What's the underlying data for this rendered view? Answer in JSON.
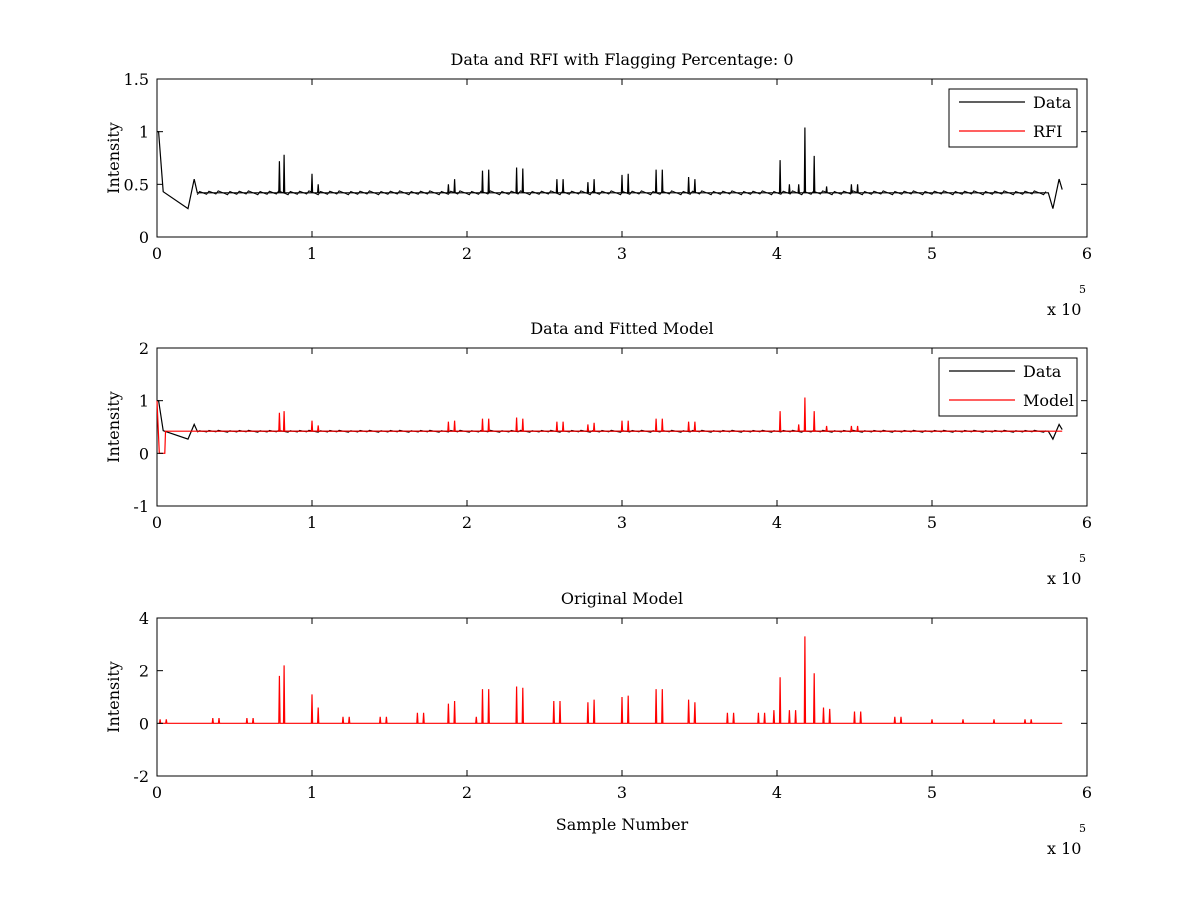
{
  "colors": {
    "data": "#000000",
    "rfi": "#ff0000",
    "axes": "#000000",
    "background": "#ffffff"
  },
  "chart_data": [
    {
      "type": "line",
      "title": "Data and RFI with Flagging Percentage: 0",
      "ylabel": "Intensity",
      "xlabel": "",
      "xlim": [
        0,
        600000
      ],
      "ylim": [
        0,
        1.5
      ],
      "xticks": [
        "0",
        "1",
        "2",
        "3",
        "4",
        "5",
        "6"
      ],
      "yticks": [
        "0",
        "0.5",
        "1",
        "1.5"
      ],
      "x_exponent_base": "x 10",
      "x_exponent": "5",
      "legend": {
        "position": "top-right",
        "entries": [
          "Data",
          "RFI"
        ]
      },
      "series": [
        {
          "name": "Data",
          "color": "#000000",
          "baseline": 0.42,
          "edges": [
            [
              0,
              1.0
            ],
            [
              1000,
              1.0
            ],
            [
              4000,
              0.43
            ],
            [
              20000,
              0.27
            ],
            [
              24000,
              0.55
            ],
            [
              26000,
              0.42
            ],
            [
              575000,
              0.42
            ],
            [
              578000,
              0.27
            ],
            [
              582000,
              0.55
            ],
            [
              584000,
              0.45
            ]
          ],
          "spikes": [
            [
              79000,
              0.72
            ],
            [
              82000,
              0.78
            ],
            [
              100000,
              0.6
            ],
            [
              104000,
              0.5
            ],
            [
              188000,
              0.5
            ],
            [
              192000,
              0.55
            ],
            [
              210000,
              0.63
            ],
            [
              214000,
              0.64
            ],
            [
              232000,
              0.66
            ],
            [
              236000,
              0.65
            ],
            [
              258000,
              0.55
            ],
            [
              262000,
              0.55
            ],
            [
              278000,
              0.52
            ],
            [
              282000,
              0.55
            ],
            [
              300000,
              0.59
            ],
            [
              304000,
              0.6
            ],
            [
              322000,
              0.64
            ],
            [
              326000,
              0.64
            ],
            [
              343000,
              0.57
            ],
            [
              347000,
              0.55
            ],
            [
              402000,
              0.73
            ],
            [
              408000,
              0.5
            ],
            [
              414000,
              0.5
            ],
            [
              418000,
              1.04
            ],
            [
              424000,
              0.77
            ],
            [
              432000,
              0.48
            ],
            [
              448000,
              0.5
            ],
            [
              452000,
              0.5
            ]
          ]
        },
        {
          "name": "RFI",
          "color": "#ff0000",
          "values": []
        }
      ]
    },
    {
      "type": "line",
      "title": "Data and Fitted Model",
      "ylabel": "Intensity",
      "xlabel": "",
      "xlim": [
        0,
        600000
      ],
      "ylim": [
        -1,
        2
      ],
      "xticks": [
        "0",
        "1",
        "2",
        "3",
        "4",
        "5",
        "6"
      ],
      "yticks": [
        "-1",
        "0",
        "1",
        "2"
      ],
      "x_exponent_base": "x 10",
      "x_exponent": "5",
      "legend": {
        "position": "top-right",
        "entries": [
          "Data",
          "Model"
        ]
      },
      "series": [
        {
          "name": "Data",
          "color": "#000000",
          "baseline": 0.42,
          "edges": [
            [
              0,
              1.0
            ],
            [
              1000,
              1.0
            ],
            [
              4000,
              0.43
            ],
            [
              20000,
              0.27
            ],
            [
              24000,
              0.55
            ],
            [
              26000,
              0.42
            ],
            [
              575000,
              0.42
            ],
            [
              578000,
              0.27
            ],
            [
              582000,
              0.55
            ],
            [
              584000,
              0.45
            ]
          ],
          "spikes": []
        },
        {
          "name": "Model",
          "color": "#ff0000",
          "baseline": 0.42,
          "edges": [
            [
              0,
              1.0
            ],
            [
              1500,
              0.0
            ],
            [
              5000,
              0.0
            ],
            [
              5500,
              0.42
            ]
          ],
          "spikes": [
            [
              79000,
              0.77
            ],
            [
              82000,
              0.8
            ],
            [
              100000,
              0.62
            ],
            [
              104000,
              0.53
            ],
            [
              188000,
              0.6
            ],
            [
              192000,
              0.62
            ],
            [
              210000,
              0.66
            ],
            [
              214000,
              0.66
            ],
            [
              232000,
              0.68
            ],
            [
              236000,
              0.66
            ],
            [
              258000,
              0.6
            ],
            [
              262000,
              0.6
            ],
            [
              278000,
              0.55
            ],
            [
              282000,
              0.58
            ],
            [
              300000,
              0.62
            ],
            [
              304000,
              0.62
            ],
            [
              322000,
              0.66
            ],
            [
              326000,
              0.66
            ],
            [
              343000,
              0.6
            ],
            [
              347000,
              0.6
            ],
            [
              402000,
              0.8
            ],
            [
              414000,
              0.55
            ],
            [
              418000,
              1.06
            ],
            [
              424000,
              0.8
            ],
            [
              432000,
              0.52
            ],
            [
              448000,
              0.52
            ],
            [
              452000,
              0.52
            ]
          ]
        }
      ]
    },
    {
      "type": "line",
      "title": "Original Model",
      "ylabel": "Intensity",
      "xlabel": "Sample Number",
      "xlim": [
        0,
        600000
      ],
      "ylim": [
        -2,
        4
      ],
      "xticks": [
        "0",
        "1",
        "2",
        "3",
        "4",
        "5",
        "6"
      ],
      "yticks": [
        "-2",
        "0",
        "2",
        "4"
      ],
      "x_exponent_base": "x 10",
      "x_exponent": "5",
      "series": [
        {
          "name": "Model",
          "color": "#ff0000",
          "baseline": 0.0,
          "edges": [],
          "spikes": [
            [
              2000,
              0.15
            ],
            [
              6000,
              0.15
            ],
            [
              36000,
              0.2
            ],
            [
              40000,
              0.2
            ],
            [
              58000,
              0.2
            ],
            [
              62000,
              0.2
            ],
            [
              79000,
              1.8
            ],
            [
              82000,
              2.2
            ],
            [
              100000,
              1.1
            ],
            [
              104000,
              0.6
            ],
            [
              120000,
              0.25
            ],
            [
              124000,
              0.25
            ],
            [
              144000,
              0.25
            ],
            [
              148000,
              0.25
            ],
            [
              168000,
              0.4
            ],
            [
              172000,
              0.4
            ],
            [
              188000,
              0.75
            ],
            [
              192000,
              0.85
            ],
            [
              206000,
              0.25
            ],
            [
              210000,
              1.3
            ],
            [
              214000,
              1.3
            ],
            [
              232000,
              1.4
            ],
            [
              236000,
              1.35
            ],
            [
              256000,
              0.85
            ],
            [
              260000,
              0.85
            ],
            [
              278000,
              0.8
            ],
            [
              282000,
              0.9
            ],
            [
              300000,
              1.0
            ],
            [
              304000,
              1.05
            ],
            [
              322000,
              1.3
            ],
            [
              326000,
              1.3
            ],
            [
              343000,
              0.9
            ],
            [
              347000,
              0.8
            ],
            [
              368000,
              0.4
            ],
            [
              372000,
              0.4
            ],
            [
              388000,
              0.4
            ],
            [
              392000,
              0.4
            ],
            [
              398000,
              0.5
            ],
            [
              402000,
              1.75
            ],
            [
              408000,
              0.5
            ],
            [
              412000,
              0.5
            ],
            [
              418000,
              3.3
            ],
            [
              424000,
              1.9
            ],
            [
              430000,
              0.6
            ],
            [
              434000,
              0.55
            ],
            [
              450000,
              0.45
            ],
            [
              454000,
              0.45
            ],
            [
              476000,
              0.25
            ],
            [
              480000,
              0.25
            ],
            [
              500000,
              0.15
            ],
            [
              520000,
              0.15
            ],
            [
              540000,
              0.15
            ],
            [
              560000,
              0.15
            ],
            [
              564000,
              0.15
            ]
          ]
        }
      ]
    }
  ]
}
